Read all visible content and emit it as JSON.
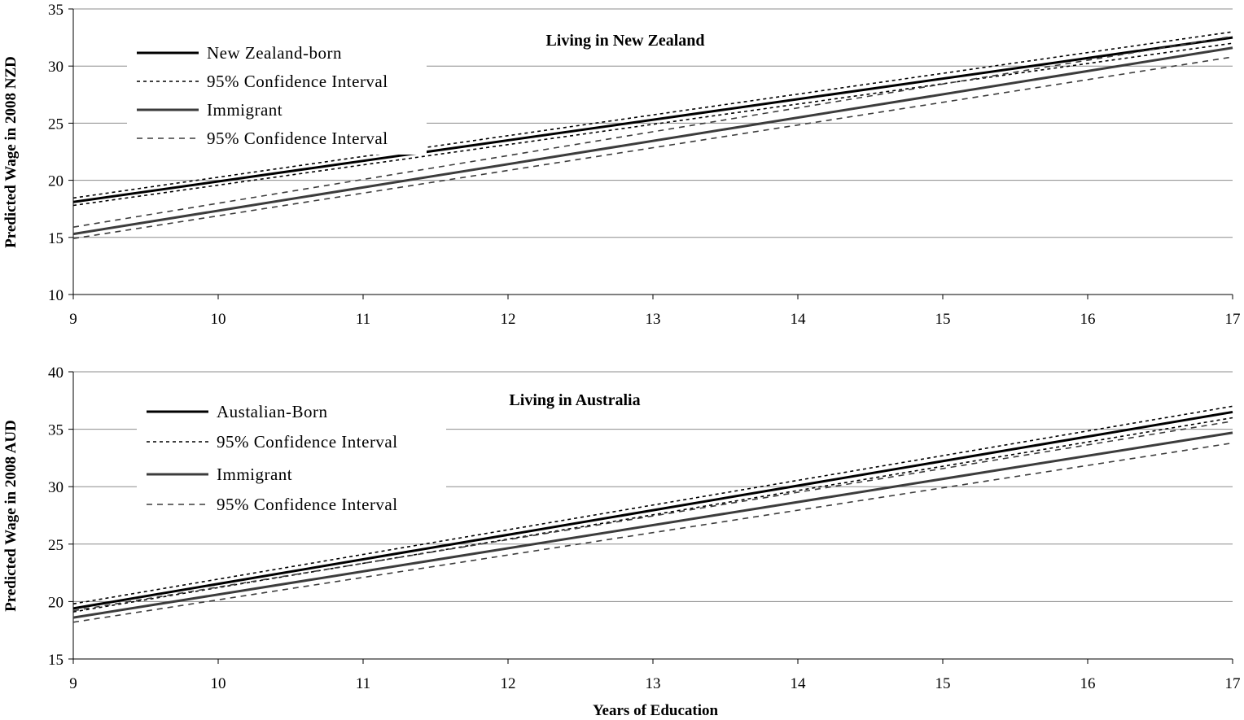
{
  "chart_data": [
    {
      "type": "line",
      "title": "Living in New Zealand",
      "ylabel": "Predicted Wage in 2008 NZD",
      "xlabel": "",
      "xlim": [
        9,
        17
      ],
      "ylim": [
        10,
        35
      ],
      "x_ticks": [
        9,
        10,
        11,
        12,
        13,
        14,
        15,
        16,
        17
      ],
      "y_ticks": [
        10,
        15,
        20,
        25,
        30,
        35
      ],
      "grid": true,
      "legend_position": "top-left",
      "series": [
        {
          "name": "New Zealand-born",
          "style": "solid",
          "color": "#000000",
          "x": [
            9,
            17
          ],
          "values": [
            18.1,
            32.5
          ]
        },
        {
          "name": "95% Confidence Interval",
          "style": "dotted",
          "color": "#000000",
          "x": [
            9,
            17
          ],
          "values": [
            18.45,
            33.0
          ]
        },
        {
          "name": "",
          "style": "dotted",
          "color": "#000000",
          "x": [
            9,
            17
          ],
          "values": [
            17.8,
            32.0
          ]
        },
        {
          "name": "Immigrant",
          "style": "solid",
          "color": "#3c3c3c",
          "x": [
            9,
            17
          ],
          "values": [
            15.3,
            31.6
          ]
        },
        {
          "name": "95% Confidence Interval",
          "style": "dashed",
          "color": "#3c3c3c",
          "x": [
            9,
            17
          ],
          "values": [
            15.9,
            32.6
          ]
        },
        {
          "name": "",
          "style": "dashed",
          "color": "#3c3c3c",
          "x": [
            9,
            17
          ],
          "values": [
            14.9,
            30.8
          ]
        }
      ]
    },
    {
      "type": "line",
      "title": "Living in Australia",
      "ylabel": "Predicted Wage in 2008 AUD",
      "xlabel": "Years of Education",
      "xlim": [
        9,
        17
      ],
      "ylim": [
        15,
        40
      ],
      "x_ticks": [
        9,
        10,
        11,
        12,
        13,
        14,
        15,
        16,
        17
      ],
      "y_ticks": [
        15,
        20,
        25,
        30,
        35,
        40
      ],
      "grid": true,
      "legend_position": "top-left",
      "series": [
        {
          "name": "Austalian-Born",
          "style": "solid",
          "color": "#000000",
          "x": [
            9,
            17
          ],
          "values": [
            19.4,
            36.5
          ]
        },
        {
          "name": "95% Confidence Interval",
          "style": "dotted",
          "color": "#000000",
          "x": [
            9,
            17
          ],
          "values": [
            19.8,
            37.0
          ]
        },
        {
          "name": "",
          "style": "dotted",
          "color": "#000000",
          "x": [
            9,
            17
          ],
          "values": [
            19.1,
            36.0
          ]
        },
        {
          "name": "Immigrant",
          "style": "solid",
          "color": "#3c3c3c",
          "x": [
            9,
            17
          ],
          "values": [
            18.6,
            34.7
          ]
        },
        {
          "name": "95% Confidence Interval",
          "style": "dashed",
          "color": "#3c3c3c",
          "x": [
            9,
            17
          ],
          "values": [
            19.2,
            35.7
          ]
        },
        {
          "name": "",
          "style": "dashed",
          "color": "#3c3c3c",
          "x": [
            9,
            17
          ],
          "values": [
            18.2,
            33.8
          ]
        }
      ]
    }
  ]
}
